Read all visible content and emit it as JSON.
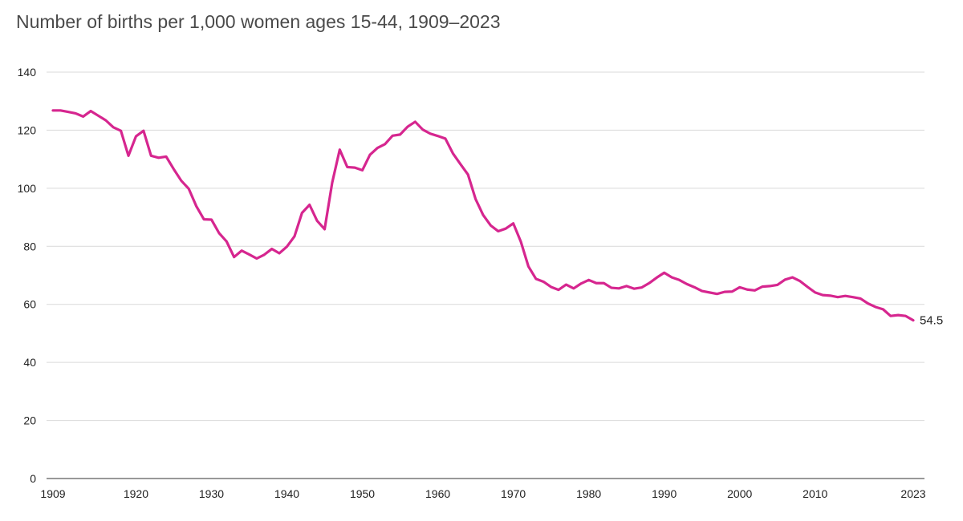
{
  "chart_data": {
    "type": "line",
    "title": "Number of births per 1,000 women ages 15-44, 1909–2023",
    "xlabel": "",
    "ylabel": "",
    "xlim": [
      1909,
      2023
    ],
    "ylim": [
      0,
      140
    ],
    "y_ticks": [
      0,
      20,
      40,
      60,
      80,
      100,
      120,
      140
    ],
    "x_ticks": [
      1909,
      1920,
      1930,
      1940,
      1950,
      1960,
      1970,
      1980,
      1990,
      2000,
      2010,
      2023
    ],
    "grid": true,
    "legend": "none",
    "line_color": "#d6268f",
    "end_label": "54.5",
    "series": [
      {
        "x": [
          1909,
          1910,
          1911,
          1912,
          1913,
          1914,
          1915,
          1916,
          1917,
          1918,
          1919,
          1920,
          1921,
          1922,
          1923,
          1924,
          1925,
          1926,
          1927,
          1928,
          1929,
          1930,
          1931,
          1932,
          1933,
          1934,
          1935,
          1936,
          1937,
          1938,
          1939,
          1940,
          1941,
          1942,
          1943,
          1944,
          1945,
          1946,
          1947,
          1948,
          1949,
          1950,
          1951,
          1952,
          1953,
          1954,
          1955,
          1956,
          1957,
          1958,
          1959,
          1960,
          1961,
          1962,
          1963,
          1964,
          1965,
          1966,
          1967,
          1968,
          1969,
          1970,
          1971,
          1972,
          1973,
          1974,
          1975,
          1976,
          1977,
          1978,
          1979,
          1980,
          1981,
          1982,
          1983,
          1984,
          1985,
          1986,
          1987,
          1988,
          1989,
          1990,
          1991,
          1992,
          1993,
          1994,
          1995,
          1996,
          1997,
          1998,
          1999,
          2000,
          2001,
          2002,
          2003,
          2004,
          2005,
          2006,
          2007,
          2008,
          2009,
          2010,
          2011,
          2012,
          2013,
          2014,
          2015,
          2016,
          2017,
          2018,
          2019,
          2020,
          2021,
          2022,
          2023
        ],
        "values": [
          126.8,
          126.8,
          126.3,
          125.8,
          124.7,
          126.6,
          125.0,
          123.4,
          121.0,
          119.8,
          111.2,
          117.9,
          119.8,
          111.2,
          110.5,
          110.9,
          106.6,
          102.6,
          99.8,
          93.8,
          89.3,
          89.2,
          84.6,
          81.7,
          76.3,
          78.5,
          77.2,
          75.8,
          77.1,
          79.1,
          77.6,
          79.9,
          83.4,
          91.5,
          94.3,
          88.8,
          85.9,
          101.9,
          113.3,
          107.3,
          107.1,
          106.2,
          111.5,
          113.9,
          115.2,
          118.1,
          118.5,
          121.2,
          122.9,
          120.2,
          118.8,
          118.0,
          117.1,
          112.0,
          108.3,
          104.7,
          96.3,
          90.8,
          87.2,
          85.2,
          86.1,
          87.9,
          81.6,
          73.1,
          68.8,
          67.8,
          66.0,
          65.0,
          66.8,
          65.5,
          67.2,
          68.4,
          67.3,
          67.3,
          65.7,
          65.5,
          66.3,
          65.4,
          65.8,
          67.3,
          69.2,
          70.9,
          69.3,
          68.4,
          67.0,
          65.9,
          64.6,
          64.1,
          63.6,
          64.3,
          64.4,
          65.9,
          65.1,
          64.8,
          66.1,
          66.3,
          66.7,
          68.5,
          69.3,
          68.0,
          66.0,
          64.1,
          63.2,
          63.0,
          62.5,
          62.9,
          62.5,
          62.0,
          60.3,
          59.1,
          58.3,
          56.0,
          56.3,
          56.0,
          54.5
        ]
      }
    ]
  }
}
